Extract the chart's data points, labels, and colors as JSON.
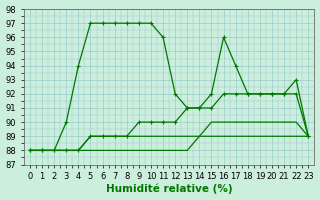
{
  "xlabel": "Humidité relative (%)",
  "xlim": [
    -0.5,
    23.5
  ],
  "ylim": [
    87,
    98
  ],
  "yticks": [
    87,
    88,
    89,
    90,
    91,
    92,
    93,
    94,
    95,
    96,
    97,
    98
  ],
  "xticks": [
    0,
    1,
    2,
    3,
    4,
    5,
    6,
    7,
    8,
    9,
    10,
    11,
    12,
    13,
    14,
    15,
    16,
    17,
    18,
    19,
    20,
    21,
    22,
    23
  ],
  "bg_color": "#cceedd",
  "grid_color": "#99cccc",
  "line_color": "#007700",
  "lines": [
    {
      "x": [
        0,
        1,
        2,
        3,
        4,
        5,
        6,
        7,
        8,
        9,
        10,
        11,
        12,
        13,
        14,
        15,
        16,
        17,
        18,
        19,
        20,
        21,
        22,
        23
      ],
      "y": [
        88,
        88,
        88,
        90,
        94,
        97,
        97,
        97,
        97,
        97,
        97,
        96,
        92,
        91,
        91,
        92,
        96,
        94,
        92,
        92,
        92,
        92,
        93,
        89
      ],
      "marker": "+"
    },
    {
      "x": [
        0,
        1,
        2,
        3,
        4,
        5,
        6,
        7,
        8,
        9,
        10,
        11,
        12,
        13,
        14,
        15,
        16,
        17,
        18,
        19,
        20,
        21,
        22,
        23
      ],
      "y": [
        88,
        88,
        88,
        88,
        88,
        89,
        89,
        89,
        89,
        90,
        90,
        90,
        90,
        91,
        91,
        91,
        92,
        92,
        92,
        92,
        92,
        92,
        92,
        89
      ],
      "marker": "+"
    },
    {
      "x": [
        0,
        1,
        2,
        3,
        4,
        5,
        6,
        7,
        8,
        9,
        10,
        11,
        12,
        13,
        14,
        15,
        16,
        17,
        18,
        19,
        20,
        21,
        22,
        23
      ],
      "y": [
        88,
        88,
        88,
        88,
        88,
        89,
        89,
        89,
        89,
        89,
        89,
        89,
        89,
        89,
        89,
        90,
        90,
        90,
        90,
        90,
        90,
        90,
        90,
        89
      ],
      "marker": null
    },
    {
      "x": [
        0,
        1,
        2,
        3,
        4,
        5,
        6,
        7,
        8,
        9,
        10,
        11,
        12,
        13,
        14,
        15,
        16,
        17,
        18,
        19,
        20,
        21,
        22,
        23
      ],
      "y": [
        88,
        88,
        88,
        88,
        88,
        88,
        88,
        88,
        88,
        88,
        88,
        88,
        88,
        88,
        89,
        89,
        89,
        89,
        89,
        89,
        89,
        89,
        89,
        89
      ],
      "marker": null
    }
  ],
  "tick_fontsize": 6,
  "xlabel_fontsize": 7.5,
  "xlabel_bold": true,
  "linewidth": 0.9,
  "markersize": 2.5
}
